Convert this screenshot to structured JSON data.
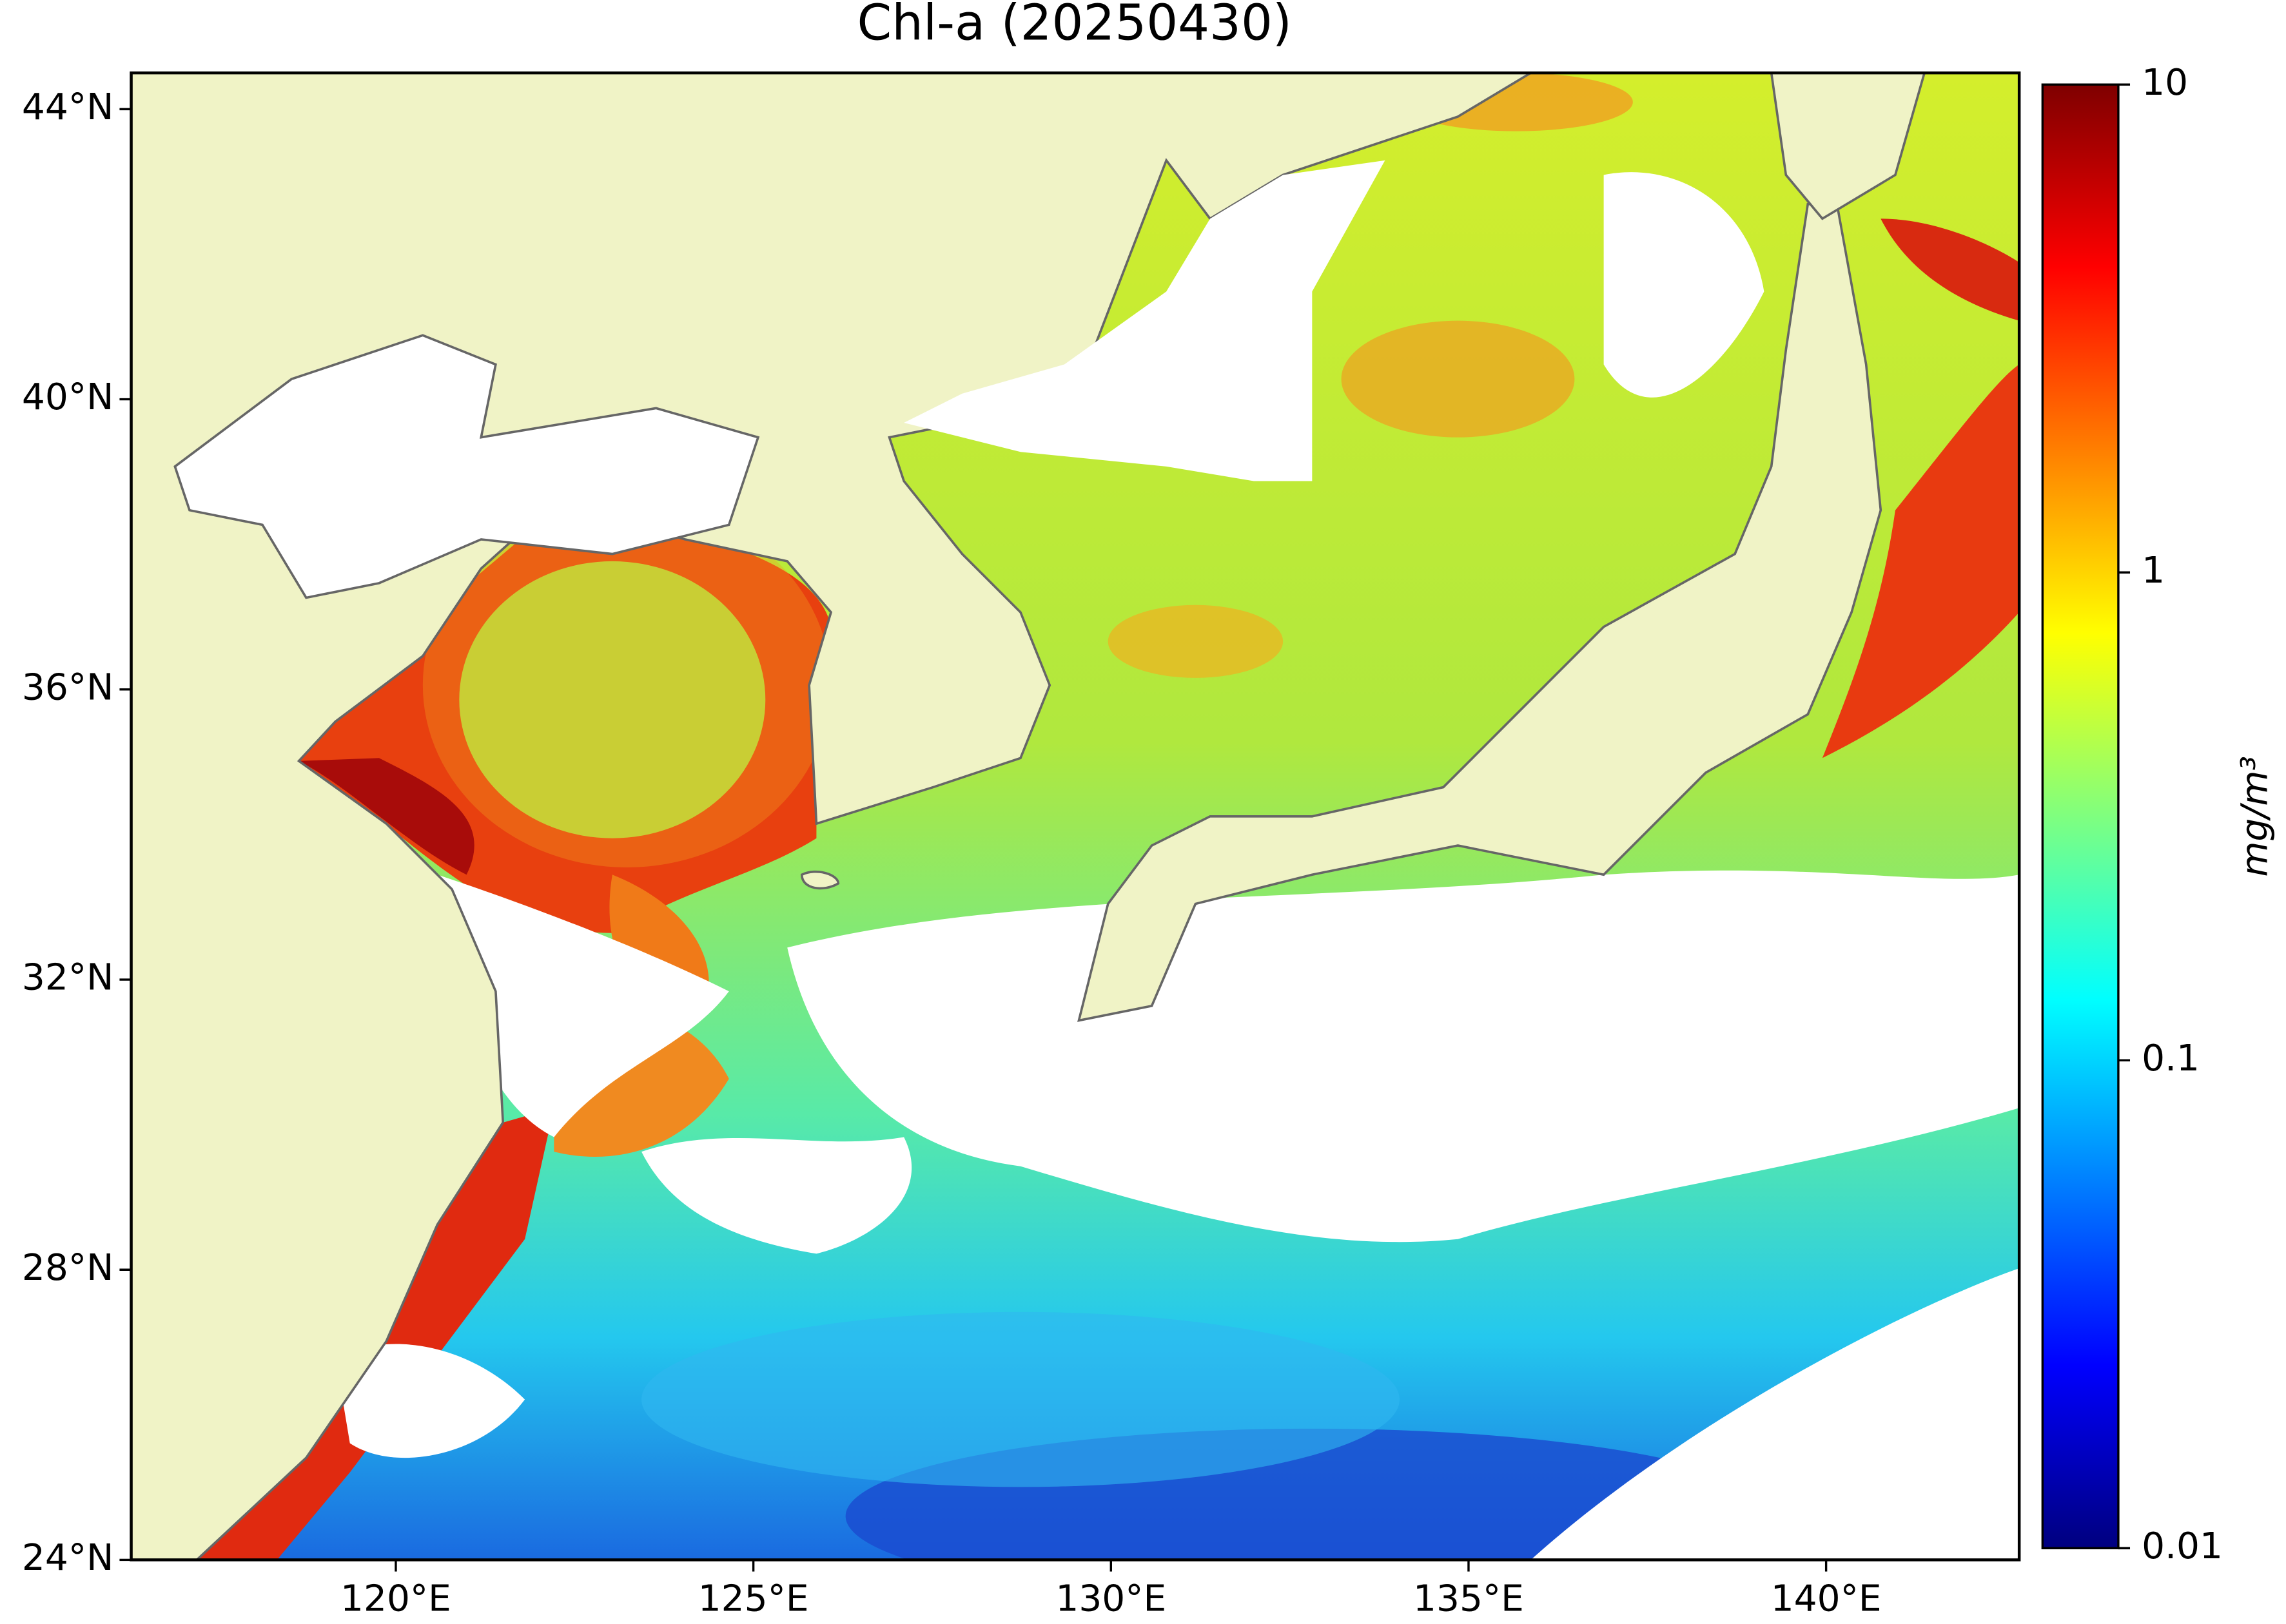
{
  "chart_data": {
    "type": "map",
    "title": "Chl-a (20250430)",
    "xlim": [
      116.3,
      142.7
    ],
    "ylim": [
      24,
      44.5
    ],
    "xticks": [
      {
        "value": 120,
        "label": "120°E"
      },
      {
        "value": 125,
        "label": "125°E"
      },
      {
        "value": 130,
        "label": "130°E"
      },
      {
        "value": 135,
        "label": "135°E"
      },
      {
        "value": 140,
        "label": "140°E"
      }
    ],
    "yticks": [
      {
        "value": 24,
        "label": "24°N"
      },
      {
        "value": 28,
        "label": "28°N"
      },
      {
        "value": 32,
        "label": "32°N"
      },
      {
        "value": 36,
        "label": "36°N"
      },
      {
        "value": 40,
        "label": "40°N"
      },
      {
        "value": 44,
        "label": "44°N"
      }
    ],
    "colorbar": {
      "label": "mg/m³",
      "scale": "log",
      "lim": [
        0.01,
        10
      ],
      "ticks": [
        0.01,
        0.1,
        1,
        10
      ],
      "colormap": "jet"
    }
  }
}
